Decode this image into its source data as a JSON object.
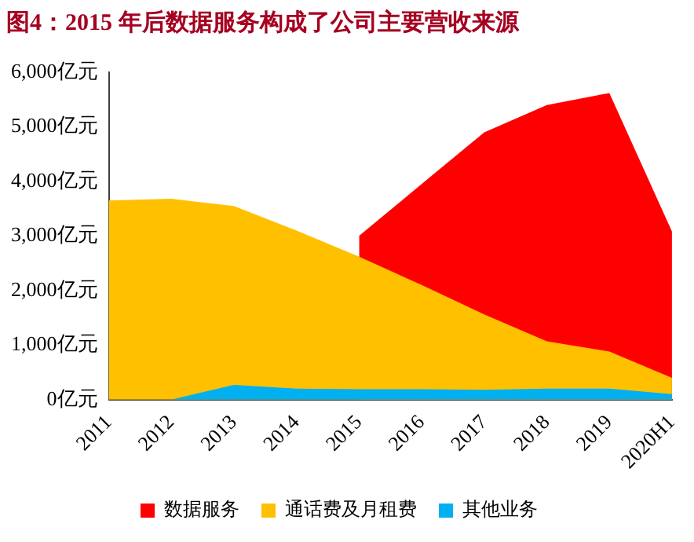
{
  "chart_data": {
    "type": "area",
    "title": "图4：2015 年后数据服务构成了公司主要营收来源",
    "categories": [
      "2011",
      "2012",
      "2013",
      "2014",
      "2015",
      "2016",
      "2017",
      "2018",
      "2019",
      "2020H1"
    ],
    "series": [
      {
        "name": "数据服务",
        "color": "#ff0000",
        "values": [
          null,
          null,
          null,
          null,
          3000,
          3950,
          4900,
          5400,
          5620,
          3080
        ]
      },
      {
        "name": "通话费及月租费",
        "color": "#ffc000",
        "values": [
          3650,
          3680,
          3550,
          3100,
          2620,
          2100,
          1560,
          1070,
          880,
          400
        ]
      },
      {
        "name": "其他业务",
        "color": "#00b0f0",
        "values": [
          0,
          0,
          270,
          200,
          190,
          190,
          180,
          200,
          200,
          100
        ]
      }
    ],
    "ylim": [
      0,
      6000
    ],
    "yticks": [
      {
        "value": 0,
        "label": "0亿元"
      },
      {
        "value": 1000,
        "label": "1,000亿元"
      },
      {
        "value": 2000,
        "label": "2,000亿元"
      },
      {
        "value": 3000,
        "label": "3,000亿元"
      },
      {
        "value": 4000,
        "label": "4,000亿元"
      },
      {
        "value": 5000,
        "label": "5,000亿元"
      },
      {
        "value": 6000,
        "label": "6,000亿元"
      }
    ],
    "grid": false,
    "legend": "bottom"
  }
}
